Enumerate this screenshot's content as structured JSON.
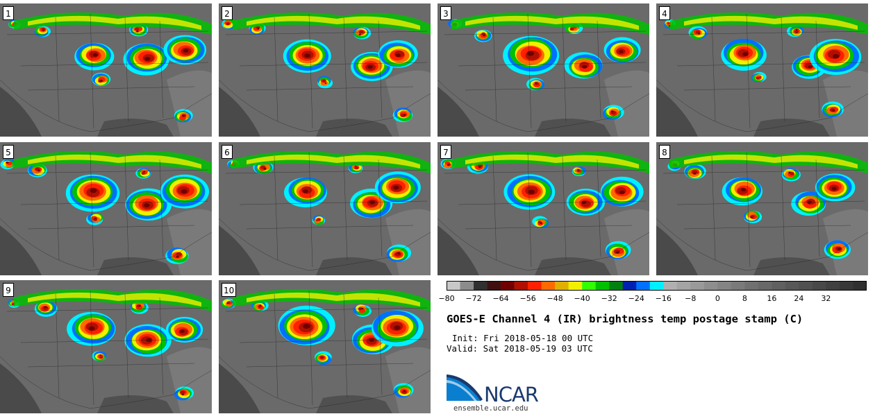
{
  "panels": [
    {
      "label": "1"
    },
    {
      "label": "2"
    },
    {
      "label": "3"
    },
    {
      "label": "4"
    },
    {
      "label": "5"
    },
    {
      "label": "6"
    },
    {
      "label": "7"
    },
    {
      "label": "8"
    },
    {
      "label": "9"
    },
    {
      "label": "10"
    }
  ],
  "colorbar": {
    "ticks": [
      "−80",
      "−72",
      "−64",
      "−56",
      "−48",
      "−40",
      "−32",
      "−24",
      "−16",
      "−8",
      "0",
      "8",
      "16",
      "24",
      "32"
    ],
    "colors": [
      "#c8c8c8",
      "#8c8c8c",
      "#303030",
      "#401010",
      "#700000",
      "#b01000",
      "#ff2000",
      "#ff6a00",
      "#e0b000",
      "#f0f000",
      "#30ff00",
      "#00c000",
      "#008010",
      "#0020b0",
      "#0070ff",
      "#00f0ff",
      "#b0b0b0",
      "#a4a4a4",
      "#9a9a9a",
      "#8e8e8e",
      "#848484",
      "#7a7a7a",
      "#707070",
      "#686868",
      "#606060",
      "#585858",
      "#505050",
      "#484848",
      "#404040",
      "#383838",
      "#303030"
    ]
  },
  "title": "GOES-E Channel 4 (IR) brightness temp postage stamp (C)",
  "init": "Init: Fri 2018-05-18 00 UTC",
  "valid": "Valid: Sat 2018-05-19 03 UTC",
  "logo": {
    "text": "NCAR",
    "color": "#1a3a6e"
  },
  "site": "ensemble.ucar.edu"
}
